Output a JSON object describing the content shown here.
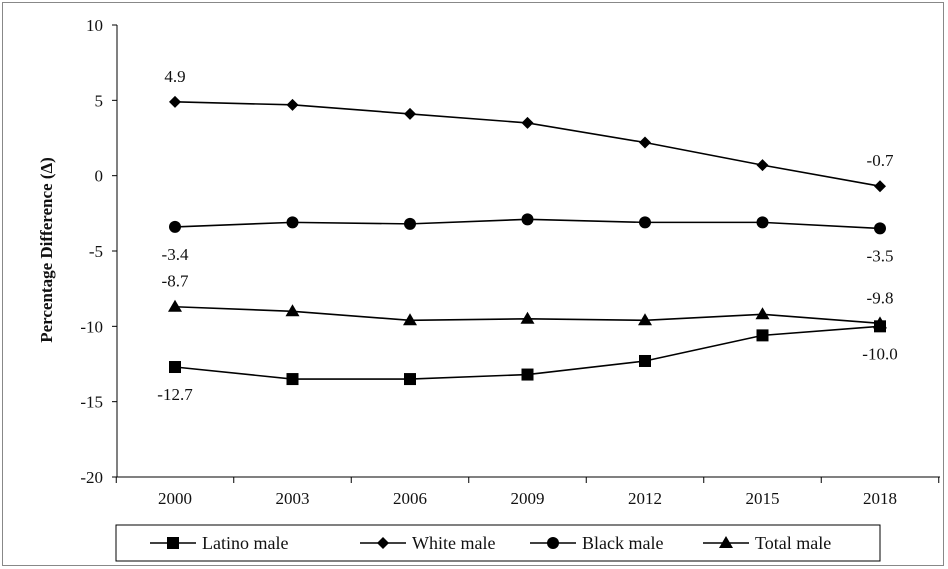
{
  "chart_data": {
    "type": "line",
    "title": "",
    "xlabel": "",
    "ylabel": "Percentage Difference (Δ)",
    "ylim": [
      -20,
      10
    ],
    "yticks": [
      10,
      5,
      0,
      -5,
      -10,
      -15,
      -20
    ],
    "categories": [
      "2000",
      "2003",
      "2006",
      "2009",
      "2012",
      "2015",
      "2018"
    ],
    "grid": false,
    "legend_position": "bottom",
    "series": [
      {
        "name": "Latino male",
        "marker": "square",
        "values": [
          -12.7,
          -13.5,
          -13.5,
          -13.2,
          -12.3,
          -10.6,
          -10.0
        ]
      },
      {
        "name": "White male",
        "marker": "diamond",
        "values": [
          4.9,
          4.7,
          4.1,
          3.5,
          2.2,
          0.7,
          -0.7
        ]
      },
      {
        "name": "Black male",
        "marker": "circle",
        "values": [
          -3.4,
          -3.1,
          -3.2,
          -2.9,
          -3.1,
          -3.1,
          -3.5
        ]
      },
      {
        "name": "Total male",
        "marker": "triangle",
        "values": [
          -8.7,
          -9.0,
          -9.6,
          -9.5,
          -9.6,
          -9.2,
          -9.8
        ]
      }
    ],
    "annotations": [
      {
        "text": "4.9",
        "series": 1,
        "index": 0,
        "pos": "above"
      },
      {
        "text": "-0.7",
        "series": 1,
        "index": 6,
        "pos": "above"
      },
      {
        "text": "-3.4",
        "series": 2,
        "index": 0,
        "pos": "below"
      },
      {
        "text": "-3.5",
        "series": 2,
        "index": 6,
        "pos": "below"
      },
      {
        "text": "-8.7",
        "series": 3,
        "index": 0,
        "pos": "above"
      },
      {
        "text": "-9.8",
        "series": 3,
        "index": 6,
        "pos": "above"
      },
      {
        "text": "-12.7",
        "series": 0,
        "index": 0,
        "pos": "below"
      },
      {
        "text": "-10.0",
        "series": 0,
        "index": 6,
        "pos": "below"
      }
    ],
    "colors": {
      "line": "#000000",
      "axis": "#000000"
    }
  }
}
